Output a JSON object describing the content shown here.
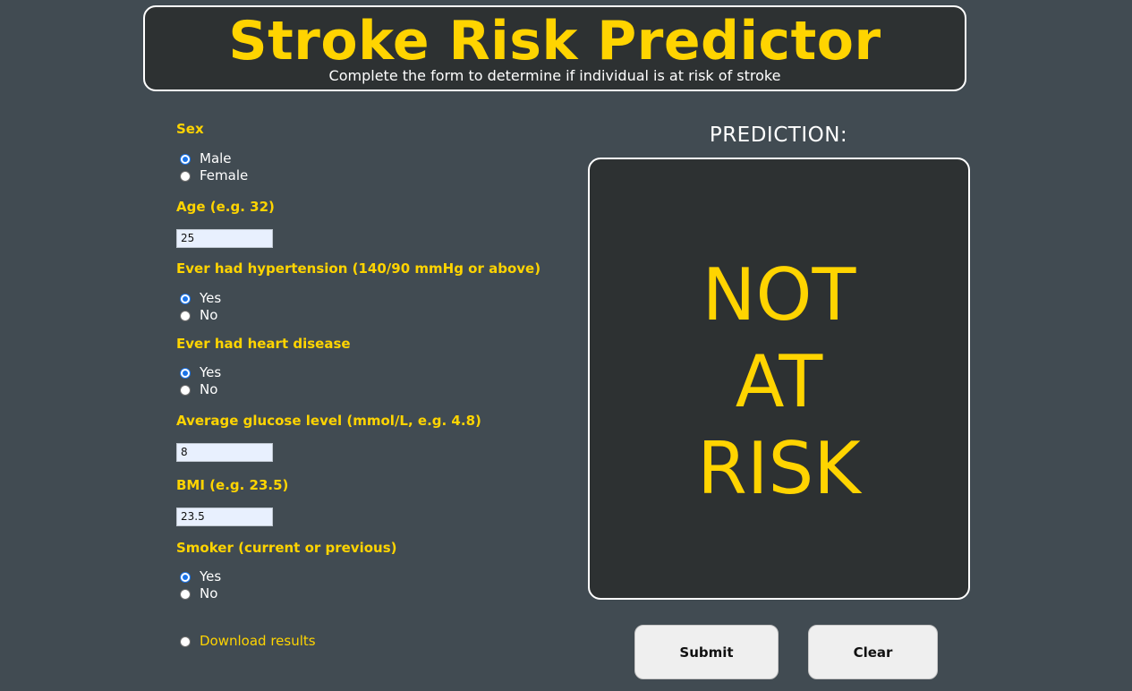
{
  "header": {
    "title": "Stroke Risk Predictor",
    "subtitle": "Complete the form to determine if individual is at risk of stroke"
  },
  "form": {
    "sex": {
      "label": "Sex",
      "options": [
        "Male",
        "Female"
      ],
      "selected": "Male"
    },
    "age": {
      "label": "Age (e.g. 32)",
      "value": "25"
    },
    "hypertension": {
      "label": "Ever had hypertension (140/90 mmHg or above)",
      "options": [
        "Yes",
        "No"
      ],
      "selected": "Yes"
    },
    "heart_disease": {
      "label": "Ever had heart disease",
      "options": [
        "Yes",
        "No"
      ],
      "selected": "Yes"
    },
    "glucose": {
      "label": "Average glucose level (mmol/L, e.g. 4.8)",
      "value": "8"
    },
    "bmi": {
      "label": "BMI (e.g. 23.5)",
      "value": "23.5"
    },
    "smoker": {
      "label": "Smoker (current or previous)",
      "options": [
        "Yes",
        "No"
      ],
      "selected": "Yes"
    },
    "download": {
      "label": "Download results",
      "checked": false
    }
  },
  "prediction": {
    "title": "PREDICTION:",
    "result_lines": [
      "NOT",
      "AT",
      "RISK"
    ]
  },
  "buttons": {
    "submit": "Submit",
    "clear": "Clear"
  },
  "colors": {
    "background": "#414b52",
    "panel": "#2d3132",
    "accent": "#ffd400",
    "radio_checked": "#1a73e8"
  }
}
